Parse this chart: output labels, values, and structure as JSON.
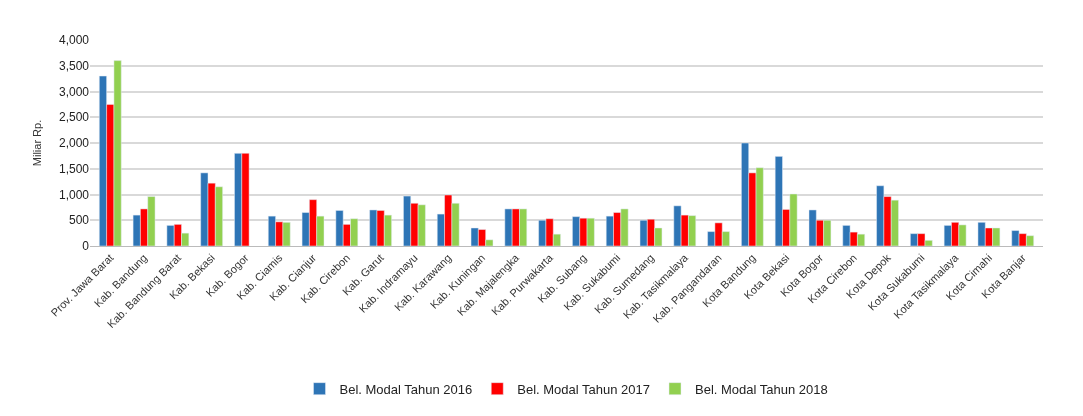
{
  "chart_data": {
    "type": "bar",
    "ylabel": "Miliar Rp.",
    "categories": [
      "Prov. Jawa Barat",
      "Kab. Bandung",
      "Kab. Bandung Barat",
      "Kab. Bekasi",
      "Kab. Bogor",
      "Kab. Ciamis",
      "Kab. Cianjur",
      "Kab. Cirebon",
      "Kab. Garut",
      "Kab. Indramayu",
      "Kab. Karawang",
      "Kab. Kuningan",
      "Kab. Majalengka",
      "Kab. Purwakarta",
      "Kab. Subang",
      "Kab. Sukabumi",
      "Kab. Sumedang",
      "Kab. Tasikmalaya",
      "Kab. Pangandaran",
      "Kota Bandung",
      "Kota Bekasi",
      "Kota Bogor",
      "Kota Cirebon",
      "Kota Depok",
      "Kota Sukabumi",
      "Kota Tasikmalaya",
      "Kota Cimahi",
      "Kota Banjar"
    ],
    "series": [
      {
        "name": "Bel. Modal Tahun 2016",
        "color": "#2e75b6",
        "values": [
          3300,
          600,
          400,
          1420,
          1800,
          580,
          650,
          690,
          700,
          970,
          620,
          350,
          720,
          500,
          570,
          580,
          500,
          780,
          280,
          2000,
          1740,
          700,
          400,
          1170,
          240,
          400,
          460,
          300
        ]
      },
      {
        "name": "Bel. Modal Tahun 2017",
        "color": "#ff0000",
        "values": [
          2750,
          720,
          420,
          1220,
          1800,
          470,
          900,
          420,
          690,
          830,
          990,
          320,
          720,
          530,
          540,
          650,
          520,
          600,
          450,
          1420,
          710,
          500,
          270,
          960,
          240,
          460,
          350,
          240
        ]
      },
      {
        "name": "Bel. Modal Tahun 2018",
        "color": "#92d050",
        "values": [
          3600,
          960,
          250,
          1150,
          null,
          460,
          580,
          530,
          600,
          800,
          830,
          120,
          720,
          230,
          540,
          720,
          350,
          590,
          280,
          1520,
          1010,
          500,
          230,
          890,
          110,
          410,
          350,
          200
        ]
      }
    ],
    "ylim": [
      0,
      4000
    ],
    "yticks": [
      {
        "value": 0,
        "label": "0"
      },
      {
        "value": 500,
        "label": "500"
      },
      {
        "value": 1000,
        "label": "1,000"
      },
      {
        "value": 1500,
        "label": "1,500"
      },
      {
        "value": 2000,
        "label": "2,000"
      },
      {
        "value": 2500,
        "label": "2,500"
      },
      {
        "value": 3000,
        "label": "3,000"
      },
      {
        "value": 3500,
        "label": "3,500"
      },
      {
        "value": 4000,
        "label": "4,000"
      }
    ],
    "grid": "y",
    "legend": "bottom"
  }
}
